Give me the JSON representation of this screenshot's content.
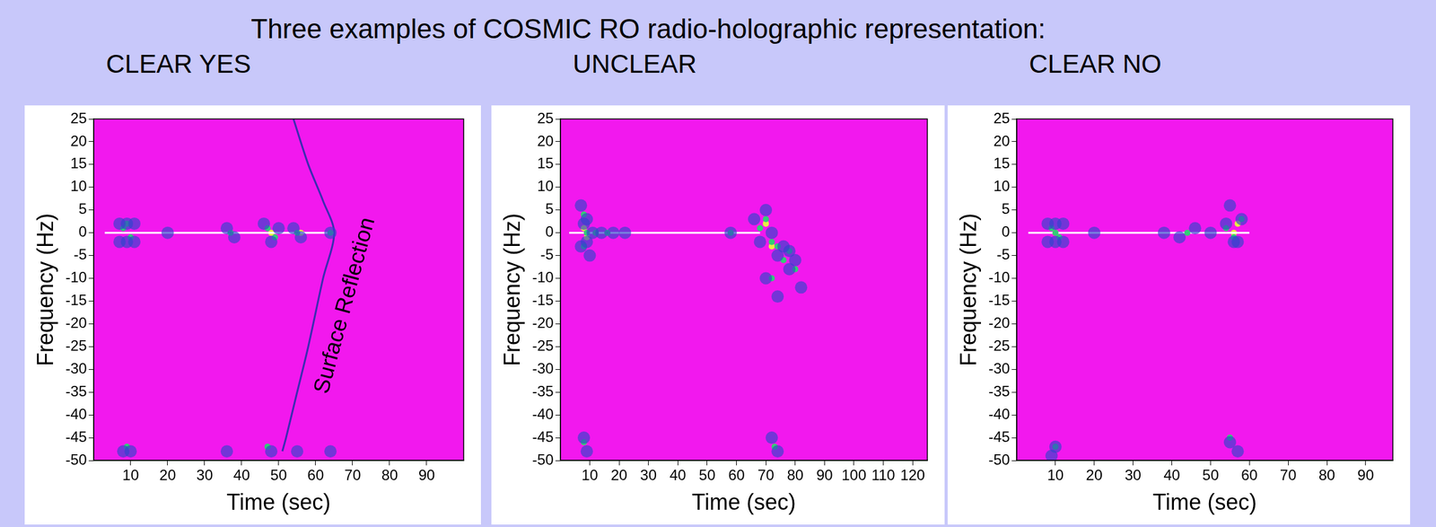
{
  "title": "Three examples of COSMIC RO radio-holographic representation:",
  "chart_data": [
    {
      "type": "scatter",
      "title": "CLEAR YES",
      "x_label": "Time (sec)",
      "y_label": "Frequency (Hz)",
      "xlim": [
        0,
        100
      ],
      "xticks": [
        10,
        20,
        30,
        40,
        50,
        60,
        70,
        80,
        90
      ],
      "ylim": [
        -50,
        25
      ],
      "yticks": [
        -50,
        -45,
        -40,
        -35,
        -30,
        -25,
        -20,
        -15,
        -10,
        -5,
        0,
        5,
        10,
        15,
        20,
        25
      ],
      "grid": false,
      "annotations": [
        {
          "text": "Surface Reflection",
          "x": 68,
          "y": -16
        }
      ],
      "series": [
        {
          "type": "scatter",
          "color": "#3344cc",
          "marker": "circle",
          "x": [
            7,
            9,
            11,
            7,
            9,
            11,
            20,
            36,
            38,
            46,
            48,
            50,
            54,
            56,
            64,
            8,
            10,
            36,
            48,
            55,
            64
          ],
          "values": [
            2,
            -2,
            2,
            -2,
            2,
            -2,
            0,
            1,
            -1,
            2,
            -2,
            1,
            1,
            -1,
            0,
            -48,
            -48,
            -48,
            -48,
            -48,
            -48
          ]
        },
        {
          "type": "scatter",
          "color": "#33cc77",
          "marker": "dot",
          "x": [
            8,
            10,
            9,
            37,
            47,
            49,
            55,
            64,
            9,
            47
          ],
          "values": [
            1,
            -1,
            2,
            0,
            1,
            -1,
            0,
            0,
            -47,
            -47
          ]
        },
        {
          "type": "line",
          "color": "#3b2db0",
          "marker": "none",
          "line_style": "solid",
          "x": [
            54,
            58,
            62,
            65,
            62,
            58,
            55,
            52,
            51
          ],
          "values": [
            25,
            15,
            7,
            0,
            -10,
            -25,
            -35,
            -45,
            -48
          ]
        },
        {
          "type": "line",
          "color": "#ffffff",
          "marker": "none",
          "line_style": "solid",
          "x": [
            3,
            65
          ],
          "values": [
            0,
            0
          ]
        },
        {
          "type": "scatter",
          "color": "#e6ee44",
          "marker": "dot",
          "x": [
            48,
            56
          ],
          "values": [
            0,
            0
          ]
        }
      ]
    },
    {
      "type": "scatter",
      "title": "UNCLEAR",
      "x_label": "Time (sec)",
      "y_label": "Frequency (Hz)",
      "xlim": [
        0,
        125
      ],
      "xticks": [
        10,
        20,
        30,
        40,
        50,
        60,
        70,
        80,
        90,
        100,
        110,
        120
      ],
      "ylim": [
        -50,
        25
      ],
      "yticks": [
        -50,
        -45,
        -40,
        -35,
        -30,
        -25,
        -20,
        -15,
        -10,
        -5,
        0,
        5,
        10,
        15,
        20,
        25
      ],
      "grid": false,
      "series": [
        {
          "type": "scatter",
          "color": "#3344cc",
          "marker": "circle",
          "x": [
            7,
            8,
            9,
            10,
            7,
            9,
            11,
            14,
            18,
            22,
            58,
            66,
            68,
            70,
            72,
            74,
            76,
            78,
            80,
            82,
            70,
            74,
            78,
            8,
            9,
            72,
            74
          ],
          "values": [
            6,
            2,
            -2,
            -5,
            -3,
            3,
            0,
            0,
            0,
            0,
            0,
            3,
            -2,
            5,
            0,
            -5,
            -3,
            -8,
            -6,
            -12,
            -10,
            -14,
            -4,
            -45,
            -48,
            -45,
            -48
          ]
        },
        {
          "type": "scatter",
          "color": "#33cc77",
          "marker": "dot",
          "x": [
            8,
            9,
            8,
            12,
            16,
            58,
            68,
            70,
            72,
            74,
            76,
            78,
            80,
            72,
            8,
            73
          ],
          "values": [
            4,
            0,
            -3,
            0,
            0,
            0,
            1,
            3,
            -2,
            -3,
            -6,
            -4,
            -8,
            -10,
            -46,
            -47
          ]
        },
        {
          "type": "line",
          "color": "#ffffff",
          "marker": "none",
          "line_style": "solid",
          "x": [
            3,
            68
          ],
          "values": [
            0,
            0
          ]
        },
        {
          "type": "scatter",
          "color": "#e6ee44",
          "marker": "dot",
          "x": [
            8,
            9,
            70,
            72
          ],
          "values": [
            1,
            -1,
            2,
            -3
          ]
        }
      ]
    },
    {
      "type": "scatter",
      "title": "CLEAR NO",
      "x_label": "Time (sec)",
      "y_label": "Frequency (Hz)",
      "xlim": [
        0,
        97
      ],
      "xticks": [
        10,
        20,
        30,
        40,
        50,
        60,
        70,
        80,
        90
      ],
      "ylim": [
        -50,
        25
      ],
      "yticks": [
        -50,
        -45,
        -40,
        -35,
        -30,
        -25,
        -20,
        -15,
        -10,
        -5,
        0,
        5,
        10,
        15,
        20,
        25
      ],
      "grid": false,
      "series": [
        {
          "type": "scatter",
          "color": "#3344cc",
          "marker": "circle",
          "x": [
            8,
            10,
            12,
            8,
            10,
            12,
            20,
            38,
            42,
            46,
            50,
            54,
            56,
            58,
            55,
            57,
            10,
            55,
            9,
            57
          ],
          "values": [
            2,
            -2,
            2,
            -2,
            2,
            -2,
            0,
            0,
            -1,
            1,
            0,
            2,
            -2,
            3,
            6,
            -2,
            -47,
            -46,
            -49,
            -48
          ]
        },
        {
          "type": "scatter",
          "color": "#33cc77",
          "marker": "dot",
          "x": [
            9,
            11,
            10,
            44,
            54,
            56,
            58,
            10,
            55
          ],
          "values": [
            1,
            -1,
            0,
            0,
            1,
            -1,
            3,
            -47,
            -45
          ]
        },
        {
          "type": "line",
          "color": "#ffffff",
          "marker": "none",
          "line_style": "solid",
          "x": [
            3,
            60
          ],
          "values": [
            0,
            0
          ]
        },
        {
          "type": "scatter",
          "color": "#e6ee44",
          "marker": "dot",
          "x": [
            10,
            56,
            57
          ],
          "values": [
            0,
            0,
            2
          ]
        }
      ]
    }
  ]
}
